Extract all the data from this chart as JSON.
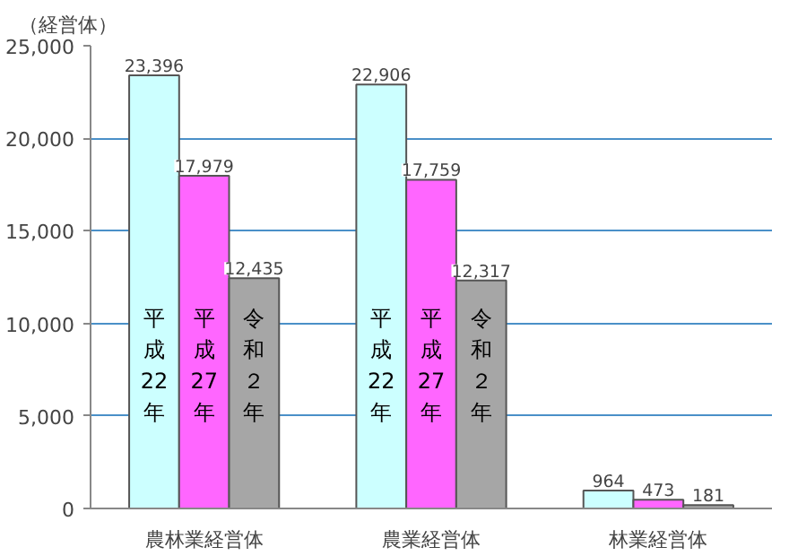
{
  "chart_data": {
    "type": "bar",
    "ylabel": "（経営体）",
    "categories": [
      "農林業経営体",
      "農業経営体",
      "林業経営体"
    ],
    "series": [
      {
        "name": "平成22年",
        "color": "#ccffff",
        "values": [
          23396,
          22906,
          964
        ],
        "value_labels": [
          "23,396",
          "22,906",
          "964"
        ]
      },
      {
        "name": "平成27年",
        "color": "#ff66ff",
        "values": [
          17979,
          17759,
          473
        ],
        "value_labels": [
          "17,979",
          "17,759",
          "473"
        ]
      },
      {
        "name": "令和２年",
        "color": "#a6a6a6",
        "values": [
          12435,
          12317,
          181
        ],
        "value_labels": [
          "12,435",
          "12,317",
          "181"
        ]
      }
    ],
    "ylim": [
      0,
      25000
    ],
    "yticks": [
      {
        "value": 0,
        "label": "0"
      },
      {
        "value": 5000,
        "label": "5,000"
      },
      {
        "value": 10000,
        "label": "10,000"
      },
      {
        "value": 15000,
        "label": "15,000"
      },
      {
        "value": 20000,
        "label": "20,000"
      },
      {
        "value": 25000,
        "label": "25,000"
      }
    ],
    "grid": "y"
  }
}
